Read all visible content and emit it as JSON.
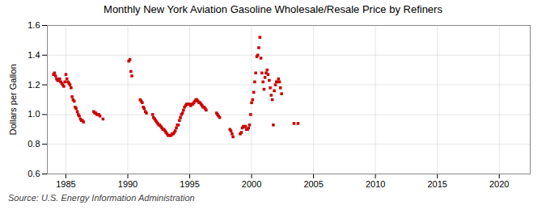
{
  "chart_data": {
    "type": "scatter",
    "title": "Monthly New York Aviation Gasoline Wholesale/Resale Price by Refiners",
    "ylabel": "Dollars per Gallon",
    "caption": "Source: U.S. Energy Information Administration",
    "xlim": [
      1983.5,
      2022.5
    ],
    "ylim": [
      0.6,
      1.6
    ],
    "xticks": [
      1985,
      1990,
      1995,
      2000,
      2005,
      2010,
      2015,
      2020
    ],
    "yticks": [
      0.6,
      0.8,
      {
        "value": 1.0,
        "label": "1.0"
      },
      1.2,
      1.4,
      1.6
    ],
    "grid": true,
    "color": "#cc0000",
    "marker": "square",
    "x": [
      1984.0,
      1984.08,
      1984.17,
      1984.25,
      1984.33,
      1984.42,
      1984.5,
      1984.58,
      1984.67,
      1984.75,
      1984.83,
      1984.92,
      1985.0,
      1985.08,
      1985.17,
      1985.25,
      1985.33,
      1985.42,
      1985.5,
      1985.58,
      1985.67,
      1985.75,
      1985.83,
      1985.92,
      1986.0,
      1986.08,
      1986.17,
      1986.25,
      1986.33,
      1986.42,
      1987.25,
      1987.33,
      1987.42,
      1987.5,
      1987.67,
      1987.75,
      1988.0,
      1990.08,
      1990.17,
      1990.25,
      1990.33,
      1991.0,
      1991.08,
      1991.17,
      1991.25,
      1991.33,
      1991.42,
      1991.5,
      1992.0,
      1992.08,
      1992.17,
      1992.25,
      1992.33,
      1992.42,
      1992.5,
      1992.58,
      1992.67,
      1992.75,
      1992.83,
      1992.92,
      1993.0,
      1993.08,
      1993.17,
      1993.25,
      1993.33,
      1993.42,
      1993.5,
      1993.58,
      1993.67,
      1993.75,
      1993.83,
      1993.92,
      1994.0,
      1994.08,
      1994.17,
      1994.25,
      1994.33,
      1994.42,
      1994.5,
      1994.58,
      1994.67,
      1994.75,
      1994.83,
      1994.92,
      1995.0,
      1995.08,
      1995.17,
      1995.25,
      1995.33,
      1995.42,
      1995.5,
      1995.58,
      1995.67,
      1995.75,
      1995.83,
      1995.92,
      1996.0,
      1996.08,
      1996.17,
      1996.25,
      1996.33,
      1997.17,
      1997.25,
      1997.33,
      1997.42,
      1998.25,
      1998.33,
      1998.42,
      1998.5,
      1999.08,
      1999.17,
      1999.25,
      1999.33,
      1999.42,
      1999.5,
      1999.58,
      1999.67,
      1999.75,
      1999.83,
      1999.92,
      2000.0,
      2000.08,
      2000.17,
      2000.25,
      2000.33,
      2000.42,
      2000.5,
      2000.58,
      2000.67,
      2000.75,
      2000.83,
      2000.92,
      2001.0,
      2001.08,
      2001.17,
      2001.25,
      2001.33,
      2001.42,
      2001.5,
      2001.58,
      2001.67,
      2001.75,
      2001.83,
      2001.92,
      2002.0,
      2002.08,
      2002.17,
      2002.25,
      2002.33,
      2002.42,
      2003.42,
      2003.75
    ],
    "values": [
      1.27,
      1.28,
      1.26,
      1.24,
      1.23,
      1.23,
      1.24,
      1.22,
      1.21,
      1.2,
      1.19,
      1.22,
      1.27,
      1.24,
      1.22,
      1.21,
      1.2,
      1.18,
      1.12,
      1.1,
      1.09,
      1.05,
      1.04,
      1.02,
      1.0,
      0.99,
      0.97,
      0.96,
      0.96,
      0.95,
      1.02,
      1.01,
      1.01,
      1.0,
      1.0,
      0.99,
      0.97,
      1.36,
      1.37,
      1.29,
      1.26,
      1.1,
      1.09,
      1.08,
      1.05,
      1.04,
      1.02,
      1.01,
      1.0,
      0.98,
      0.97,
      0.96,
      0.95,
      0.94,
      0.93,
      0.93,
      0.92,
      0.91,
      0.9,
      0.9,
      0.89,
      0.88,
      0.87,
      0.86,
      0.86,
      0.86,
      0.86,
      0.87,
      0.87,
      0.88,
      0.89,
      0.91,
      0.93,
      0.93,
      0.96,
      0.98,
      1.0,
      1.01,
      1.03,
      1.05,
      1.06,
      1.07,
      1.07,
      1.07,
      1.07,
      1.06,
      1.07,
      1.07,
      1.08,
      1.09,
      1.1,
      1.1,
      1.09,
      1.08,
      1.08,
      1.07,
      1.06,
      1.05,
      1.05,
      1.04,
      1.03,
      1.01,
      1.0,
      0.99,
      0.98,
      0.9,
      0.89,
      0.87,
      0.85,
      0.87,
      0.88,
      0.91,
      0.92,
      0.92,
      0.92,
      0.9,
      0.9,
      0.91,
      0.93,
      1.0,
      1.08,
      1.1,
      1.15,
      1.22,
      1.28,
      1.39,
      1.4,
      1.45,
      1.52,
      1.38,
      1.28,
      1.22,
      1.17,
      1.25,
      1.28,
      1.3,
      1.27,
      1.23,
      1.18,
      1.13,
      1.1,
      0.93,
      1.16,
      1.2,
      1.22,
      1.22,
      1.24,
      1.22,
      1.18,
      1.14,
      0.94,
      0.94
    ]
  }
}
